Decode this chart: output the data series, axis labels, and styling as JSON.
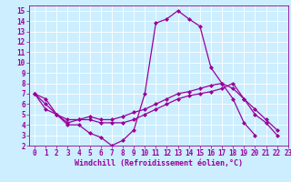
{
  "bg_color": "#cceeff",
  "line_color": "#990099",
  "grid_color": "#ffffff",
  "xlabel": "Windchill (Refroidissement éolien,°C)",
  "xlim": [
    -0.5,
    23
  ],
  "ylim": [
    2,
    15.5
  ],
  "xticks": [
    0,
    1,
    2,
    3,
    4,
    5,
    6,
    7,
    8,
    9,
    10,
    11,
    12,
    13,
    14,
    15,
    16,
    17,
    18,
    19,
    20,
    21,
    22,
    23
  ],
  "yticks": [
    2,
    3,
    4,
    5,
    6,
    7,
    8,
    9,
    10,
    11,
    12,
    13,
    14,
    15
  ],
  "series1_x": [
    0,
    1,
    2,
    3,
    4,
    5,
    6,
    7,
    8,
    9,
    10,
    11,
    12,
    13,
    14,
    15,
    16,
    17,
    18,
    19,
    20
  ],
  "series1_y": [
    7.0,
    6.5,
    5.0,
    4.0,
    4.0,
    3.2,
    2.8,
    2.0,
    2.5,
    3.5,
    7.0,
    13.8,
    14.2,
    15.0,
    14.2,
    13.5,
    9.5,
    8.0,
    6.5,
    4.2,
    3.0
  ],
  "series2_x": [
    0,
    1,
    2,
    3,
    4,
    5,
    6,
    7,
    8,
    9,
    10,
    11,
    12,
    13,
    14,
    15,
    16,
    17,
    18,
    19,
    20,
    21,
    22
  ],
  "series2_y": [
    7.0,
    6.0,
    5.0,
    4.5,
    4.5,
    4.5,
    4.2,
    4.2,
    4.2,
    4.5,
    5.0,
    5.5,
    6.0,
    6.5,
    6.8,
    7.0,
    7.2,
    7.5,
    8.0,
    6.5,
    5.0,
    4.2,
    3.0
  ],
  "series3_x": [
    0,
    1,
    2,
    3,
    4,
    5,
    6,
    7,
    8,
    9,
    10,
    11,
    12,
    13,
    14,
    15,
    16,
    17,
    18,
    19,
    20,
    21,
    22
  ],
  "series3_y": [
    7.0,
    5.5,
    5.0,
    4.2,
    4.5,
    4.8,
    4.5,
    4.5,
    4.8,
    5.2,
    5.5,
    6.0,
    6.5,
    7.0,
    7.2,
    7.5,
    7.8,
    8.0,
    7.5,
    6.5,
    5.5,
    4.5,
    3.5
  ],
  "marker": "D",
  "markersize": 2,
  "linewidth": 0.9,
  "tick_fontsize": 5.5,
  "label_fontsize": 6.0
}
